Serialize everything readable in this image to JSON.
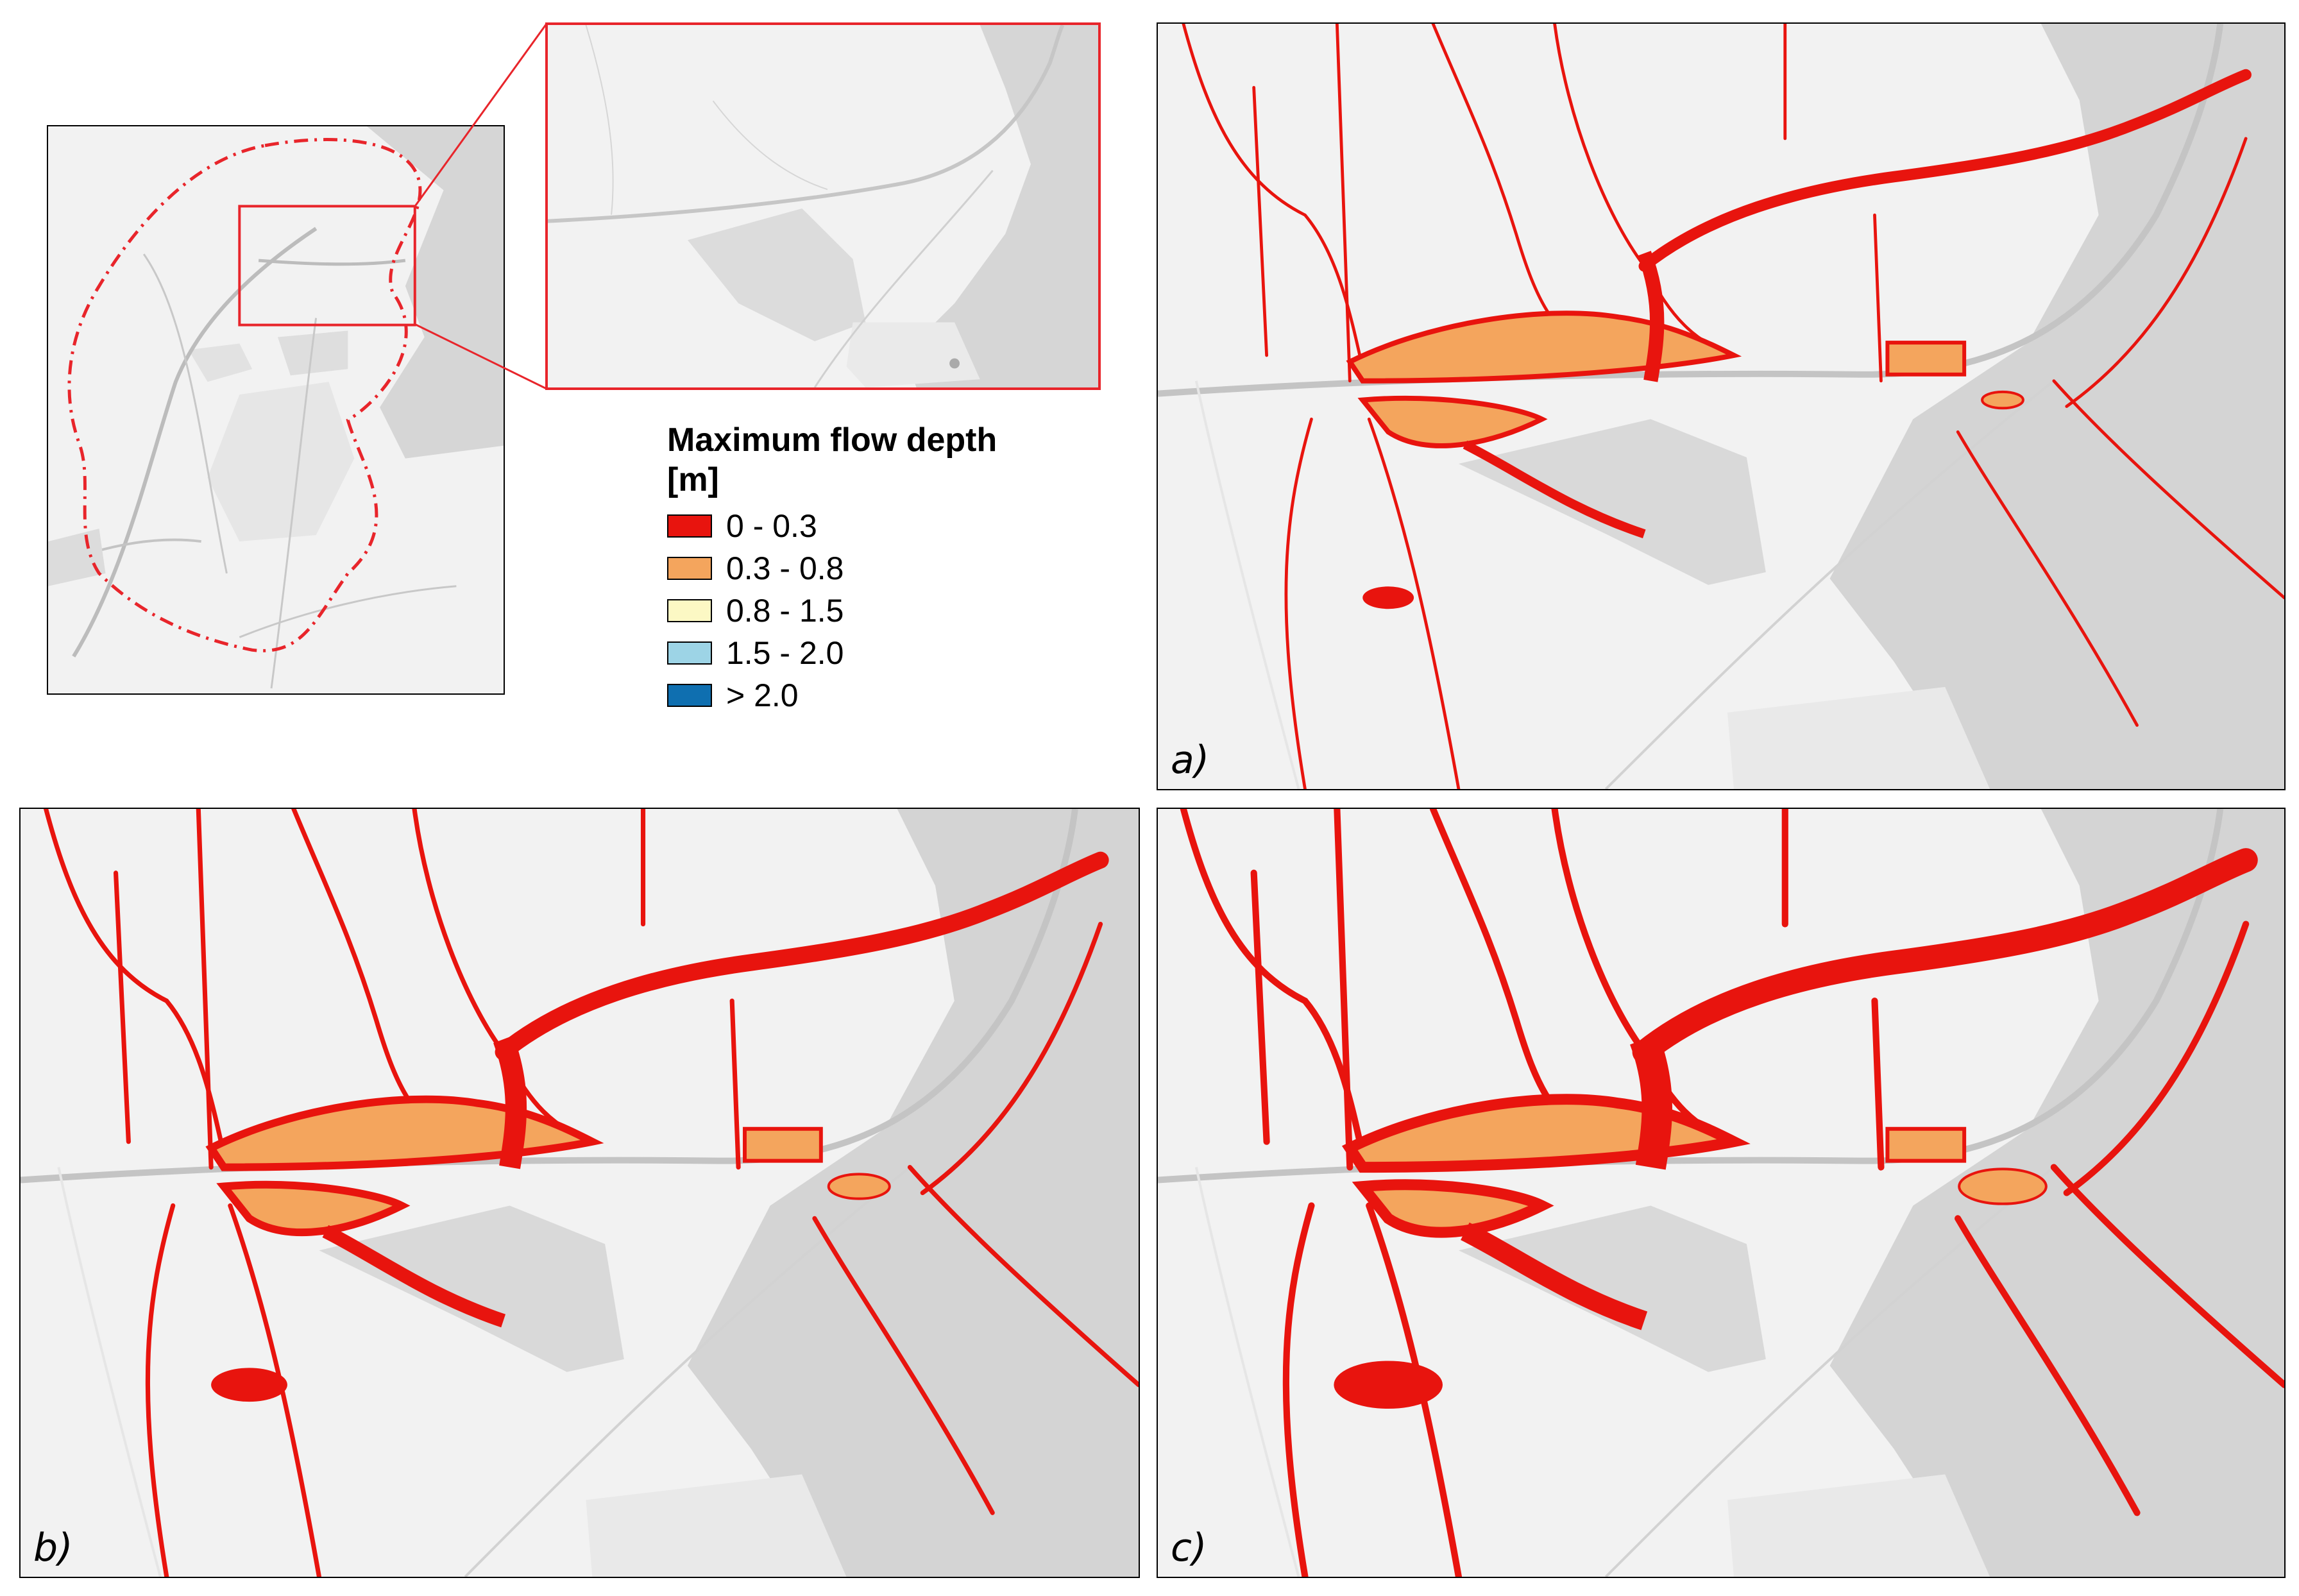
{
  "legend": {
    "title": "Maximum flow depth [m]",
    "items": [
      {
        "label": "0 - 0.3",
        "color": "#e8140e"
      },
      {
        "label": "0.3 - 0.8",
        "color": "#f4a55d"
      },
      {
        "label": "0.8 - 1.5",
        "color": "#fcf8c4"
      },
      {
        "label": "1.5 - 2.0",
        "color": "#9dd4e6"
      },
      {
        "label": "> 2.0",
        "color": "#0f6fb0"
      }
    ]
  },
  "panels": [
    {
      "id": "a",
      "label": "a)",
      "flood_extent": "small"
    },
    {
      "id": "b",
      "label": "b)",
      "flood_extent": "medium"
    },
    {
      "id": "c",
      "label": "c)",
      "flood_extent": "large"
    }
  ],
  "colors": {
    "boundary": "#e8252b",
    "map_background": "#f2f2f2",
    "dark_zone": "#d4d4d4",
    "flood_shallow": "#e8140e",
    "flood_medium": "#f4a55d"
  }
}
